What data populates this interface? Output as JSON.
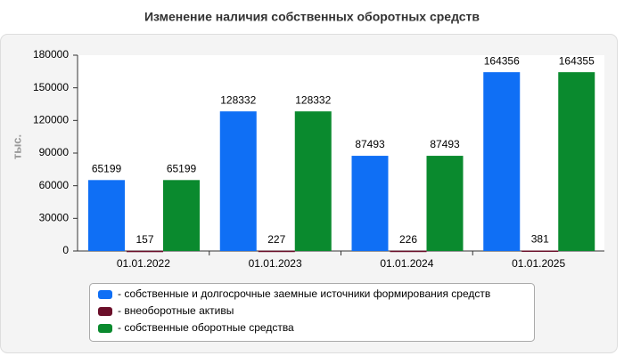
{
  "chart_data": {
    "type": "bar",
    "title": "Изменение наличия собственных оборотных средств",
    "y_label": "тыс.",
    "categories": [
      "01.01.2022",
      "01.01.2023",
      "01.01.2024",
      "01.01.2025"
    ],
    "series": [
      {
        "name": "- собственные и долгосрочные заемные источники формирования средств",
        "color": "#0f6ff5",
        "values": [
          65199,
          128332,
          87493,
          164356
        ]
      },
      {
        "name": "- внеоборотные активы",
        "color": "#6b0f2a",
        "values": [
          157,
          227,
          226,
          381
        ]
      },
      {
        "name": "- собственные оборотные средства",
        "color": "#0a8a2e",
        "values": [
          65199,
          128332,
          87493,
          164355
        ]
      }
    ],
    "ylim": [
      0,
      180000
    ],
    "yticks": [
      0,
      30000,
      60000,
      90000,
      120000,
      150000,
      180000
    ],
    "grid": false,
    "legend": "bottom"
  }
}
